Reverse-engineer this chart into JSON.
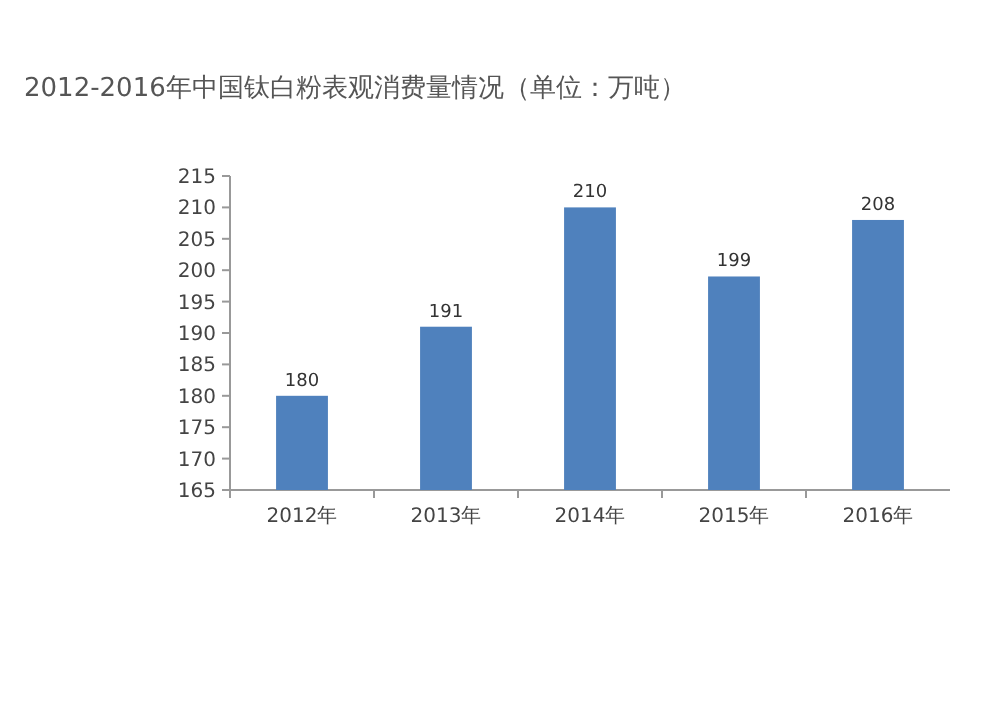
{
  "chart_data": {
    "type": "bar",
    "title": "2012-2016年中国钛白粉表观消费量情况（单位：万吨）",
    "categories": [
      "2012年",
      "2013年",
      "2014年",
      "2015年",
      "2016年"
    ],
    "values": [
      180,
      191,
      210,
      199,
      208
    ],
    "color": "#4f81bd",
    "ylim": [
      165,
      215
    ],
    "yticks": [
      165,
      170,
      175,
      180,
      185,
      190,
      195,
      200,
      205,
      210,
      215
    ],
    "data_labels": true
  }
}
